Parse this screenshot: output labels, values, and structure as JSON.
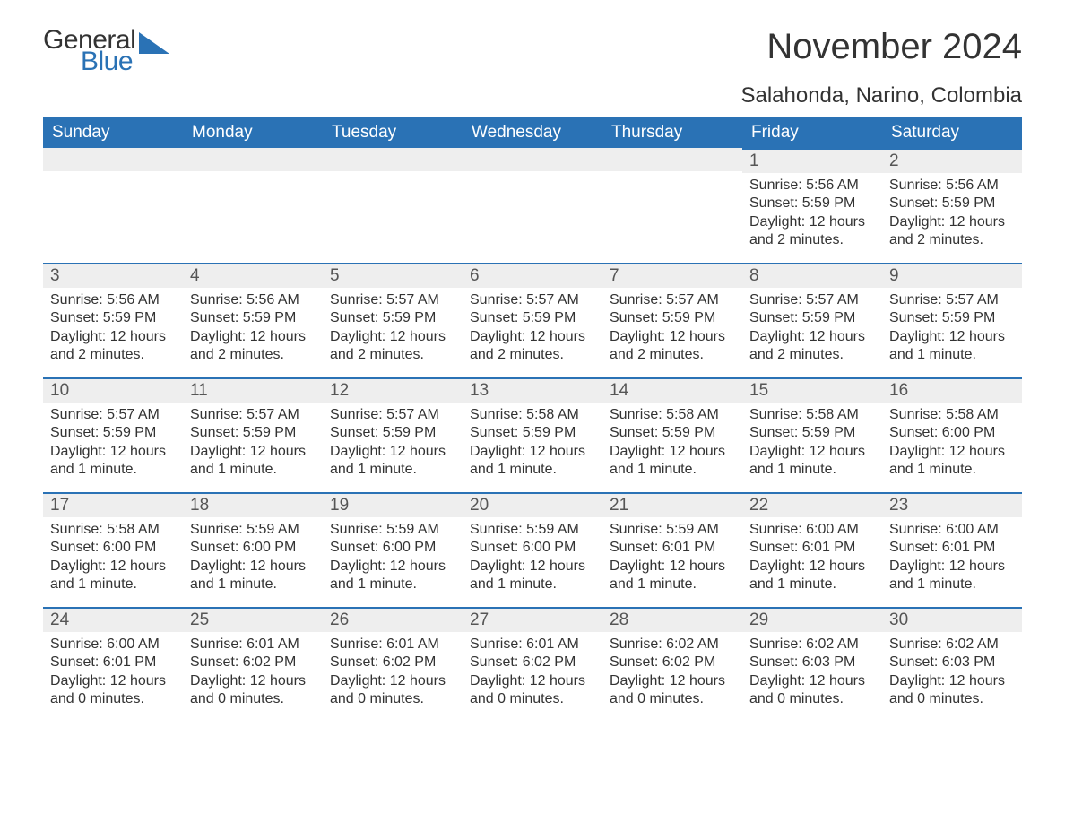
{
  "brand": {
    "word1": "General",
    "word2": "Blue"
  },
  "title": "November 2024",
  "location": "Salahonda, Narino, Colombia",
  "colors": {
    "header_bg": "#2a72b5",
    "header_text": "#ffffff",
    "daynum_bg": "#eeeeee",
    "daynum_border": "#2a72b5",
    "body_bg": "#ffffff",
    "text": "#333333",
    "brand_blue": "#2a72b5"
  },
  "typography": {
    "base_font": "Arial",
    "title_size_pt": 30,
    "location_size_pt": 18,
    "header_size_pt": 14,
    "body_size_pt": 12
  },
  "calendar": {
    "type": "table",
    "columns": [
      "Sunday",
      "Monday",
      "Tuesday",
      "Wednesday",
      "Thursday",
      "Friday",
      "Saturday"
    ],
    "weeks": [
      [
        null,
        null,
        null,
        null,
        null,
        {
          "n": "1",
          "sunrise": "Sunrise: 5:56 AM",
          "sunset": "Sunset: 5:59 PM",
          "daylight": "Daylight: 12 hours and 2 minutes."
        },
        {
          "n": "2",
          "sunrise": "Sunrise: 5:56 AM",
          "sunset": "Sunset: 5:59 PM",
          "daylight": "Daylight: 12 hours and 2 minutes."
        }
      ],
      [
        {
          "n": "3",
          "sunrise": "Sunrise: 5:56 AM",
          "sunset": "Sunset: 5:59 PM",
          "daylight": "Daylight: 12 hours and 2 minutes."
        },
        {
          "n": "4",
          "sunrise": "Sunrise: 5:56 AM",
          "sunset": "Sunset: 5:59 PM",
          "daylight": "Daylight: 12 hours and 2 minutes."
        },
        {
          "n": "5",
          "sunrise": "Sunrise: 5:57 AM",
          "sunset": "Sunset: 5:59 PM",
          "daylight": "Daylight: 12 hours and 2 minutes."
        },
        {
          "n": "6",
          "sunrise": "Sunrise: 5:57 AM",
          "sunset": "Sunset: 5:59 PM",
          "daylight": "Daylight: 12 hours and 2 minutes."
        },
        {
          "n": "7",
          "sunrise": "Sunrise: 5:57 AM",
          "sunset": "Sunset: 5:59 PM",
          "daylight": "Daylight: 12 hours and 2 minutes."
        },
        {
          "n": "8",
          "sunrise": "Sunrise: 5:57 AM",
          "sunset": "Sunset: 5:59 PM",
          "daylight": "Daylight: 12 hours and 2 minutes."
        },
        {
          "n": "9",
          "sunrise": "Sunrise: 5:57 AM",
          "sunset": "Sunset: 5:59 PM",
          "daylight": "Daylight: 12 hours and 1 minute."
        }
      ],
      [
        {
          "n": "10",
          "sunrise": "Sunrise: 5:57 AM",
          "sunset": "Sunset: 5:59 PM",
          "daylight": "Daylight: 12 hours and 1 minute."
        },
        {
          "n": "11",
          "sunrise": "Sunrise: 5:57 AM",
          "sunset": "Sunset: 5:59 PM",
          "daylight": "Daylight: 12 hours and 1 minute."
        },
        {
          "n": "12",
          "sunrise": "Sunrise: 5:57 AM",
          "sunset": "Sunset: 5:59 PM",
          "daylight": "Daylight: 12 hours and 1 minute."
        },
        {
          "n": "13",
          "sunrise": "Sunrise: 5:58 AM",
          "sunset": "Sunset: 5:59 PM",
          "daylight": "Daylight: 12 hours and 1 minute."
        },
        {
          "n": "14",
          "sunrise": "Sunrise: 5:58 AM",
          "sunset": "Sunset: 5:59 PM",
          "daylight": "Daylight: 12 hours and 1 minute."
        },
        {
          "n": "15",
          "sunrise": "Sunrise: 5:58 AM",
          "sunset": "Sunset: 5:59 PM",
          "daylight": "Daylight: 12 hours and 1 minute."
        },
        {
          "n": "16",
          "sunrise": "Sunrise: 5:58 AM",
          "sunset": "Sunset: 6:00 PM",
          "daylight": "Daylight: 12 hours and 1 minute."
        }
      ],
      [
        {
          "n": "17",
          "sunrise": "Sunrise: 5:58 AM",
          "sunset": "Sunset: 6:00 PM",
          "daylight": "Daylight: 12 hours and 1 minute."
        },
        {
          "n": "18",
          "sunrise": "Sunrise: 5:59 AM",
          "sunset": "Sunset: 6:00 PM",
          "daylight": "Daylight: 12 hours and 1 minute."
        },
        {
          "n": "19",
          "sunrise": "Sunrise: 5:59 AM",
          "sunset": "Sunset: 6:00 PM",
          "daylight": "Daylight: 12 hours and 1 minute."
        },
        {
          "n": "20",
          "sunrise": "Sunrise: 5:59 AM",
          "sunset": "Sunset: 6:00 PM",
          "daylight": "Daylight: 12 hours and 1 minute."
        },
        {
          "n": "21",
          "sunrise": "Sunrise: 5:59 AM",
          "sunset": "Sunset: 6:01 PM",
          "daylight": "Daylight: 12 hours and 1 minute."
        },
        {
          "n": "22",
          "sunrise": "Sunrise: 6:00 AM",
          "sunset": "Sunset: 6:01 PM",
          "daylight": "Daylight: 12 hours and 1 minute."
        },
        {
          "n": "23",
          "sunrise": "Sunrise: 6:00 AM",
          "sunset": "Sunset: 6:01 PM",
          "daylight": "Daylight: 12 hours and 1 minute."
        }
      ],
      [
        {
          "n": "24",
          "sunrise": "Sunrise: 6:00 AM",
          "sunset": "Sunset: 6:01 PM",
          "daylight": "Daylight: 12 hours and 0 minutes."
        },
        {
          "n": "25",
          "sunrise": "Sunrise: 6:01 AM",
          "sunset": "Sunset: 6:02 PM",
          "daylight": "Daylight: 12 hours and 0 minutes."
        },
        {
          "n": "26",
          "sunrise": "Sunrise: 6:01 AM",
          "sunset": "Sunset: 6:02 PM",
          "daylight": "Daylight: 12 hours and 0 minutes."
        },
        {
          "n": "27",
          "sunrise": "Sunrise: 6:01 AM",
          "sunset": "Sunset: 6:02 PM",
          "daylight": "Daylight: 12 hours and 0 minutes."
        },
        {
          "n": "28",
          "sunrise": "Sunrise: 6:02 AM",
          "sunset": "Sunset: 6:02 PM",
          "daylight": "Daylight: 12 hours and 0 minutes."
        },
        {
          "n": "29",
          "sunrise": "Sunrise: 6:02 AM",
          "sunset": "Sunset: 6:03 PM",
          "daylight": "Daylight: 12 hours and 0 minutes."
        },
        {
          "n": "30",
          "sunrise": "Sunrise: 6:02 AM",
          "sunset": "Sunset: 6:03 PM",
          "daylight": "Daylight: 12 hours and 0 minutes."
        }
      ]
    ]
  }
}
